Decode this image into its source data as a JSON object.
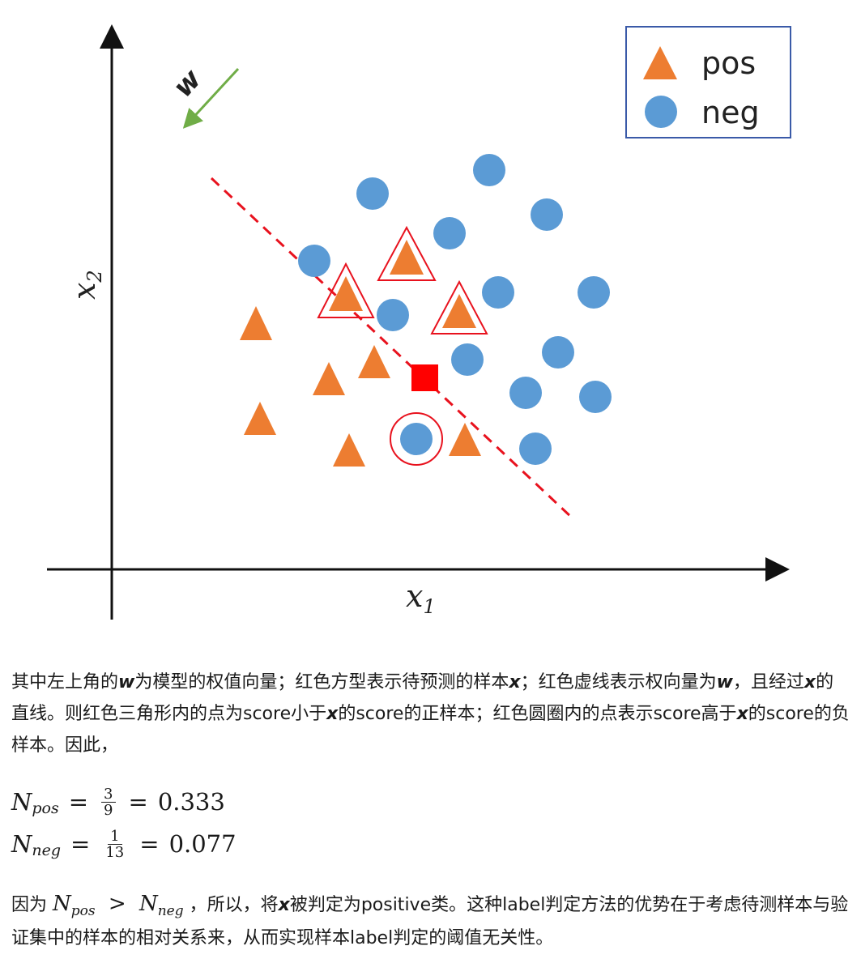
{
  "figure": {
    "legend": {
      "pos_label": "pos",
      "neg_label": "neg"
    },
    "x_axis_label": "x",
    "x_axis_sub": "1",
    "y_axis_label": "x",
    "y_axis_sub": "2",
    "w_label": "w",
    "colors": {
      "pos": "#ED7D31",
      "neg": "#5B9BD5",
      "highlight": "#E8121E",
      "w_arrow": "#70AD47"
    },
    "icons": {
      "pos": "triangle-icon",
      "neg": "circle-icon",
      "query": "square-icon"
    }
  },
  "paragraph1": {
    "s1": "其中左上角的",
    "w1": "w",
    "s2": "为模型的权值向量；红色方型表示待预测的样本",
    "x1": "x",
    "s3": "；红色虚线表示权向量为",
    "w2": "w",
    "s4": "，且经过",
    "x2": "x",
    "s5": "的直线。则红色三角形内的点为score小于",
    "x3": "x",
    "s6": "的score的正样本；红色圆圈内的点表示score高于",
    "x4": "x",
    "s7": "的score的负样本。因此，"
  },
  "equations": {
    "eq1": {
      "lhs": "N",
      "sub": "pos",
      "eq": "=",
      "num": "3",
      "den": "9",
      "eq2": "=",
      "result": "0.333"
    },
    "eq2": {
      "lhs": "N",
      "sub": "neg",
      "eq": "=",
      "num": "1",
      "den": "13",
      "eq2": "=",
      "result": "0.077"
    }
  },
  "paragraph2": {
    "s1": "因为",
    "n1": "N",
    "n1sub": "pos",
    "gt": ">",
    "n2": "N",
    "n2sub": "neg",
    "s2": "，所以，将",
    "x": "x",
    "s3": "被判定为positive类。这种label判定方法的优势在于考虑待测样本与验证集中的样本的相对关系来，从而实现样本label判定的阈值无关性。"
  }
}
